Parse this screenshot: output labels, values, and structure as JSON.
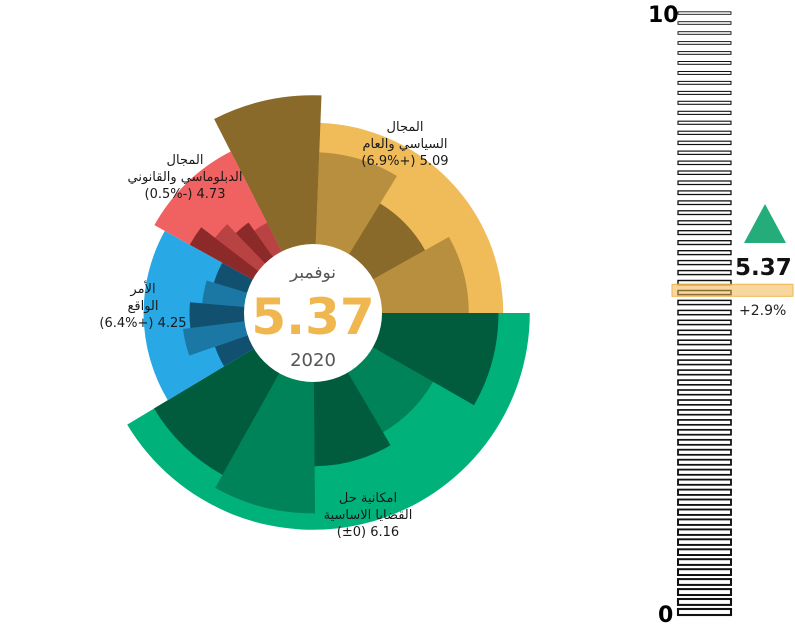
{
  "chart_data": {
    "type": "radial-bar",
    "center": {
      "month": "نوفمبر",
      "value": "5.37",
      "year": "2020"
    },
    "scale": {
      "min": 0,
      "max": 10,
      "min_label": "0",
      "max_label": "10"
    },
    "current": {
      "value": 5.37,
      "value_label": "5.37",
      "change_label": "+2.9%",
      "trend": "up"
    },
    "segments": [
      {
        "label_lines": [
          "المجال",
          "السياسي والعام",
          "5.09 (+6.9%)"
        ],
        "color": "#f0bc5a",
        "dark": "#8a6a2a",
        "value": 5.09,
        "sub_values": [
          6.2,
          3.9,
          2.6,
          3.7
        ]
      },
      {
        "label_lines": [
          "امكانية حل",
          "القضايا الاساسية",
          "6.16 (±0)"
        ],
        "color": "#00b27a",
        "dark": "#005c3d",
        "value": 6.16,
        "sub_values": [
          4.9,
          3.0,
          3.6,
          5.5,
          4.9
        ]
      },
      {
        "label_lines": [
          "الأمر",
          "الواقع",
          "4.25 (+6.4%)"
        ],
        "color": "#29a8e6",
        "dark": "#11506e",
        "value": 4.25,
        "sub_values": [
          1.6,
          2.7,
          2.4,
          1.9,
          1.6
        ]
      },
      {
        "label_lines": [
          "المجال",
          "الدبلوماسي والقانوني",
          "4.73 (-0.5%)"
        ],
        "color": "#f06161",
        "dark": "#8c2a2a",
        "value": 4.73,
        "sub_values": [
          3.1,
          2.4,
          1.9,
          1.5
        ]
      }
    ]
  }
}
